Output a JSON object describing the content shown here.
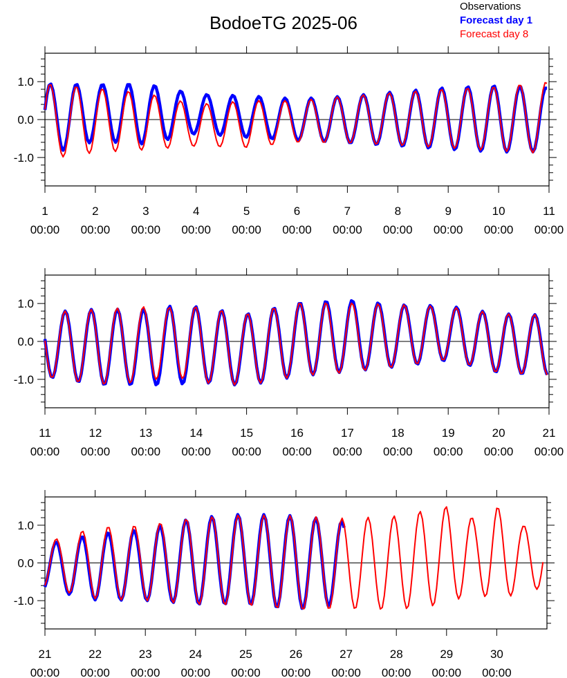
{
  "title": "BodoeTG 2025-06",
  "legend": [
    {
      "label": "Observations",
      "color": "#000000",
      "bold": false
    },
    {
      "label": "Forecast day 1",
      "color": "#0000ff",
      "bold": true
    },
    {
      "label": "Forecast day 8",
      "color": "#ff0000",
      "bold": false
    }
  ],
  "chart_data": {
    "type": "line",
    "title": "BodoeTG 2025-06",
    "xlabel": "",
    "ylabel": "",
    "ylim": [
      -1.75,
      1.75
    ],
    "yticks": [
      {
        "value": -1.0,
        "label": "-1.0"
      },
      {
        "value": 0.0,
        "label": "0.0"
      },
      {
        "value": 1.0,
        "label": "1.0"
      }
    ],
    "zero_line": true,
    "grid": false,
    "legend_position": "top-right",
    "panels": [
      {
        "x_range": [
          1,
          11
        ],
        "x_ticks": [
          {
            "day": "1",
            "time": "00:00"
          },
          {
            "day": "2",
            "time": "00:00"
          },
          {
            "day": "3",
            "time": "00:00"
          },
          {
            "day": "4",
            "time": "00:00"
          },
          {
            "day": "5",
            "time": "00:00"
          },
          {
            "day": "6",
            "time": "00:00"
          },
          {
            "day": "7",
            "time": "00:00"
          },
          {
            "day": "8",
            "time": "00:00"
          },
          {
            "day": "9",
            "time": "00:00"
          },
          {
            "day": "10",
            "time": "00:00"
          },
          {
            "day": "11",
            "time": "00:00"
          }
        ],
        "series": [
          {
            "name": "Forecast day 1",
            "color": "#0000ff",
            "style": "thick",
            "phase0": -1.3,
            "x_start": 1,
            "x_end": 10.98,
            "amplitude": [
              [
                1.0,
                0.95
              ],
              [
                2.0,
                0.75
              ],
              [
                3.0,
                0.8
              ],
              [
                4.0,
                0.52
              ],
              [
                5.0,
                0.55
              ],
              [
                6.0,
                0.55
              ],
              [
                7.0,
                0.62
              ],
              [
                8.0,
                0.72
              ],
              [
                9.0,
                0.82
              ],
              [
                10.0,
                0.88
              ],
              [
                11.0,
                0.85
              ]
            ],
            "offset": [
              [
                1.0,
                0.0
              ],
              [
                2.0,
                0.18
              ],
              [
                3.0,
                0.15
              ],
              [
                4.0,
                0.15
              ],
              [
                5.0,
                0.08
              ],
              [
                6.0,
                0.0
              ],
              [
                7.0,
                0.0
              ],
              [
                8.0,
                0.02
              ],
              [
                9.0,
                0.03
              ],
              [
                10.0,
                0.02
              ],
              [
                11.0,
                0.0
              ]
            ]
          },
          {
            "name": "Forecast day 8",
            "color": "#ff0000",
            "style": "thin",
            "phase0": -1.25,
            "x_start": 1,
            "x_end": 10.98,
            "amplitude": [
              [
                1.0,
                1.0
              ],
              [
                2.0,
                0.85
              ],
              [
                3.0,
                0.75
              ],
              [
                4.0,
                0.55
              ],
              [
                5.0,
                0.62
              ],
              [
                6.0,
                0.55
              ],
              [
                7.0,
                0.62
              ],
              [
                8.0,
                0.7
              ],
              [
                9.0,
                0.78
              ],
              [
                10.0,
                0.85
              ],
              [
                11.0,
                0.95
              ]
            ],
            "offset": [
              [
                1.0,
                -0.05
              ],
              [
                2.0,
                -0.02
              ],
              [
                3.0,
                -0.05
              ],
              [
                4.0,
                -0.15
              ],
              [
                5.0,
                -0.12
              ],
              [
                6.0,
                -0.05
              ],
              [
                7.0,
                0.0
              ],
              [
                8.0,
                0.02
              ],
              [
                9.0,
                0.03
              ],
              [
                10.0,
                0.02
              ],
              [
                11.0,
                0.05
              ]
            ]
          }
        ]
      },
      {
        "x_range": [
          11,
          21
        ],
        "x_ticks": [
          {
            "day": "11",
            "time": "00:00"
          },
          {
            "day": "12",
            "time": "00:00"
          },
          {
            "day": "13",
            "time": "00:00"
          },
          {
            "day": "14",
            "time": "00:00"
          },
          {
            "day": "15",
            "time": "00:00"
          },
          {
            "day": "16",
            "time": "00:00"
          },
          {
            "day": "17",
            "time": "00:00"
          },
          {
            "day": "18",
            "time": "00:00"
          },
          {
            "day": "19",
            "time": "00:00"
          },
          {
            "day": "20",
            "time": "00:00"
          },
          {
            "day": "21",
            "time": "00:00"
          }
        ],
        "series": [
          {
            "name": "Forecast day 1",
            "color": "#0000ff",
            "style": "thick",
            "phase0": 1.4,
            "x_start": 11,
            "x_end": 20.98,
            "amplitude": [
              [
                11.0,
                0.85
              ],
              [
                12.0,
                1.0
              ],
              [
                13.0,
                1.0
              ],
              [
                13.5,
                1.05
              ],
              [
                14.0,
                1.0
              ],
              [
                15.0,
                0.95
              ],
              [
                16.0,
                0.97
              ],
              [
                17.0,
                0.95
              ],
              [
                18.0,
                0.82
              ],
              [
                19.0,
                0.72
              ],
              [
                20.0,
                0.78
              ],
              [
                21.0,
                0.8
              ]
            ],
            "offset": [
              [
                11.0,
                -0.08
              ],
              [
                12.0,
                -0.15
              ],
              [
                13.0,
                -0.15
              ],
              [
                14.0,
                -0.08
              ],
              [
                15.0,
                -0.22
              ],
              [
                16.0,
                0.05
              ],
              [
                17.0,
                0.15
              ],
              [
                18.0,
                0.15
              ],
              [
                19.0,
                0.22
              ],
              [
                20.0,
                -0.05
              ],
              [
                21.0,
                -0.1
              ]
            ]
          },
          {
            "name": "Forecast day 8",
            "color": "#ff0000",
            "style": "thin",
            "phase0": 1.45,
            "x_start": 11,
            "x_end": 20.98,
            "amplitude": [
              [
                11.0,
                0.85
              ],
              [
                12.0,
                1.0
              ],
              [
                13.0,
                1.0
              ],
              [
                13.5,
                0.9
              ],
              [
                14.0,
                1.0
              ],
              [
                15.0,
                0.95
              ],
              [
                16.0,
                0.97
              ],
              [
                17.0,
                0.92
              ],
              [
                18.0,
                0.82
              ],
              [
                19.0,
                0.7
              ],
              [
                20.0,
                0.78
              ],
              [
                21.0,
                0.8
              ]
            ],
            "offset": [
              [
                11.0,
                -0.08
              ],
              [
                12.0,
                -0.15
              ],
              [
                13.0,
                -0.08
              ],
              [
                13.5,
                0.0
              ],
              [
                14.0,
                -0.08
              ],
              [
                15.0,
                -0.22
              ],
              [
                16.0,
                0.05
              ],
              [
                17.0,
                0.1
              ],
              [
                18.0,
                0.15
              ],
              [
                19.0,
                0.22
              ],
              [
                20.0,
                -0.05
              ],
              [
                21.0,
                -0.1
              ]
            ]
          }
        ]
      },
      {
        "x_range": [
          21,
          31
        ],
        "x_ticks": [
          {
            "day": "21",
            "time": "00:00"
          },
          {
            "day": "22",
            "time": "00:00"
          },
          {
            "day": "23",
            "time": "00:00"
          },
          {
            "day": "24",
            "time": "00:00"
          },
          {
            "day": "25",
            "time": "00:00"
          },
          {
            "day": "26",
            "time": "00:00"
          },
          {
            "day": "27",
            "time": "00:00"
          },
          {
            "day": "28",
            "time": "00:00"
          },
          {
            "day": "29",
            "time": "00:00"
          },
          {
            "day": "30",
            "time": "00:00"
          }
        ],
        "series": [
          {
            "name": "Forecast day 1",
            "color": "#0000ff",
            "style": "thick",
            "phase0": 3.6,
            "x_start": 21,
            "x_end": 26.97,
            "amplitude": [
              [
                21.0,
                0.6
              ],
              [
                22.0,
                0.88
              ],
              [
                23.0,
                0.95
              ],
              [
                24.0,
                1.15
              ],
              [
                25.0,
                1.2
              ],
              [
                26.0,
                1.25
              ],
              [
                27.0,
                1.1
              ]
            ],
            "offset": [
              [
                21.0,
                -0.1
              ],
              [
                22.0,
                -0.1
              ],
              [
                23.0,
                -0.05
              ],
              [
                24.0,
                0.05
              ],
              [
                25.0,
                0.1
              ],
              [
                26.0,
                0.0
              ],
              [
                27.0,
                0.0
              ]
            ]
          },
          {
            "name": "Forecast day 8",
            "color": "#ff0000",
            "style": "thin",
            "phase0": 3.55,
            "x_start": 21,
            "x_end": 30.95,
            "amplitude": [
              [
                21.0,
                0.6
              ],
              [
                22.0,
                0.95
              ],
              [
                23.0,
                1.0
              ],
              [
                24.0,
                1.15
              ],
              [
                25.0,
                1.2
              ],
              [
                26.0,
                1.25
              ],
              [
                27.0,
                1.2
              ],
              [
                28.0,
                1.25
              ],
              [
                29.0,
                1.3
              ],
              [
                29.6,
                0.95
              ],
              [
                30.0,
                1.3
              ],
              [
                30.5,
                0.85
              ],
              [
                31.0,
                0.8
              ]
            ],
            "offset": [
              [
                21.0,
                -0.05
              ],
              [
                22.0,
                0.0
              ],
              [
                23.0,
                0.0
              ],
              [
                24.0,
                0.05
              ],
              [
                25.0,
                0.08
              ],
              [
                26.0,
                0.0
              ],
              [
                27.0,
                -0.02
              ],
              [
                28.0,
                0.0
              ],
              [
                29.0,
                0.2
              ],
              [
                30.0,
                0.2
              ],
              [
                31.0,
                0.1
              ]
            ]
          }
        ]
      }
    ]
  }
}
